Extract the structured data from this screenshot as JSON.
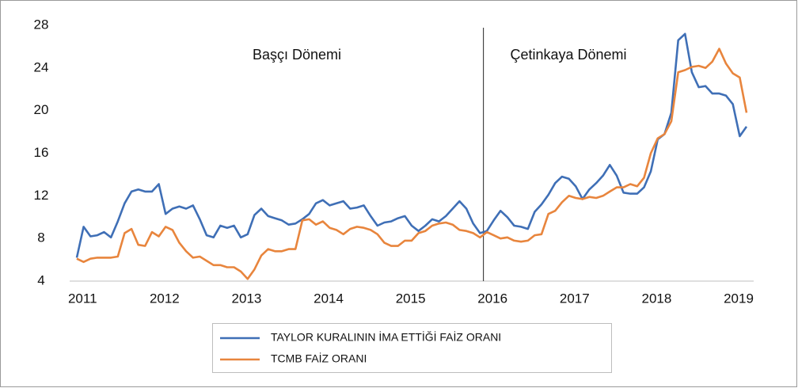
{
  "chart_data": {
    "type": "line",
    "categories": [
      null,
      null,
      "2011",
      null,
      null,
      null,
      null,
      null,
      null,
      null,
      null,
      null,
      null,
      null,
      "2012",
      null,
      null,
      null,
      null,
      null,
      null,
      null,
      null,
      null,
      null,
      null,
      "2013",
      null,
      null,
      null,
      null,
      null,
      null,
      null,
      null,
      null,
      null,
      null,
      "2014",
      null,
      null,
      null,
      null,
      null,
      null,
      null,
      null,
      null,
      null,
      null,
      "2015",
      null,
      null,
      null,
      null,
      null,
      null,
      null,
      null,
      null,
      null,
      null,
      "2016",
      null,
      null,
      null,
      null,
      null,
      null,
      null,
      null,
      null,
      null,
      null,
      "2017",
      null,
      null,
      null,
      null,
      null,
      null,
      null,
      null,
      null,
      null,
      null,
      "2018",
      null,
      null,
      null,
      null,
      null,
      null,
      null,
      null,
      null,
      null,
      null,
      "2019"
    ],
    "series": [
      {
        "name": "TAYLOR KURALININ İMA ETTİĞİ FAİZ ORANI",
        "color": "#3f6fb6",
        "values": [
          6.2,
          9.1,
          8.2,
          8.3,
          8.6,
          8.1,
          9.6,
          11.3,
          12.4,
          12.6,
          12.4,
          12.4,
          13.1,
          10.3,
          10.8,
          11.0,
          10.8,
          11.1,
          9.8,
          8.3,
          8.1,
          9.2,
          9.0,
          9.2,
          8.1,
          8.4,
          10.2,
          10.8,
          10.1,
          9.9,
          9.7,
          9.3,
          9.4,
          9.8,
          10.3,
          11.3,
          11.6,
          11.1,
          11.3,
          11.5,
          10.8,
          10.9,
          11.1,
          10.1,
          9.2,
          9.5,
          9.6,
          9.9,
          10.1,
          9.2,
          8.7,
          9.2,
          9.8,
          9.6,
          10.1,
          10.8,
          11.5,
          10.8,
          9.4,
          8.5,
          8.7,
          9.7,
          10.6,
          10.0,
          9.2,
          9.1,
          8.9,
          10.5,
          11.2,
          12.1,
          13.2,
          13.8,
          13.6,
          12.9,
          11.7,
          12.6,
          13.2,
          13.9,
          14.9,
          13.9,
          12.3,
          12.2,
          12.2,
          12.8,
          14.3,
          17.3,
          17.8,
          19.8,
          26.6,
          27.2,
          23.6,
          22.2,
          22.3,
          21.6,
          21.6,
          21.4,
          20.6,
          17.6,
          18.5
        ]
      },
      {
        "name": "TCMB FAİZ ORANI",
        "color": "#e8853d",
        "values": [
          6.1,
          5.8,
          6.1,
          6.2,
          6.2,
          6.2,
          6.3,
          8.5,
          8.9,
          7.4,
          7.3,
          8.6,
          8.2,
          9.1,
          8.8,
          7.6,
          6.8,
          6.2,
          6.3,
          5.9,
          5.5,
          5.5,
          5.3,
          5.3,
          4.9,
          4.2,
          5.1,
          6.4,
          7.0,
          6.8,
          6.8,
          7.0,
          7.0,
          9.7,
          9.8,
          9.3,
          9.6,
          9.0,
          8.8,
          8.4,
          8.9,
          9.1,
          9.0,
          8.8,
          8.4,
          7.6,
          7.3,
          7.3,
          7.8,
          7.8,
          8.5,
          8.7,
          9.2,
          9.4,
          9.5,
          9.3,
          8.8,
          8.7,
          8.5,
          8.1,
          8.6,
          8.3,
          8.0,
          8.1,
          7.8,
          7.7,
          7.8,
          8.3,
          8.4,
          10.3,
          10.6,
          11.4,
          12.0,
          11.8,
          11.7,
          11.9,
          11.8,
          12.0,
          12.4,
          12.8,
          12.8,
          13.1,
          12.9,
          13.7,
          16.0,
          17.4,
          17.8,
          19.0,
          23.6,
          23.8,
          24.1,
          24.2,
          24.0,
          24.6,
          25.8,
          24.4,
          23.5,
          23.1,
          19.8
        ]
      }
    ],
    "ylim": [
      4,
      28
    ],
    "yticks": [
      4,
      8,
      12,
      16,
      20,
      24,
      28
    ],
    "grid": false,
    "divider_after_index": 59,
    "annotations": [
      "Başçı Dönemi",
      "Çetinkaya Dönemi"
    ]
  }
}
